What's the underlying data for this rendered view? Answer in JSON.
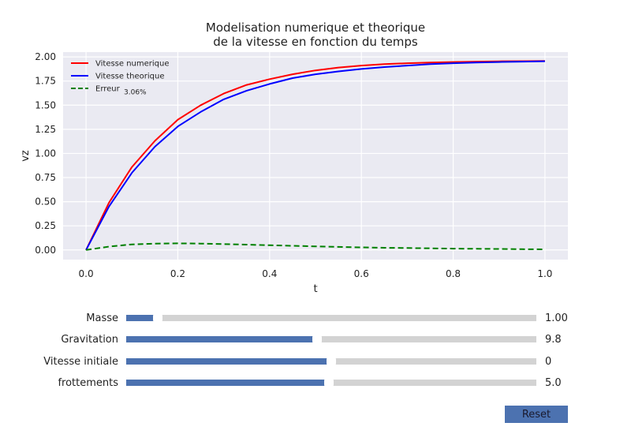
{
  "chart_data": {
    "type": "line",
    "title": "Modelisation numerique et theorique\nde la vitesse en fonction du temps",
    "xlabel": "t",
    "ylabel": "vz",
    "xlim": [
      -0.05,
      1.05
    ],
    "ylim": [
      -0.1,
      2.05
    ],
    "xticks": [
      "0.0",
      "0.2",
      "0.4",
      "0.6",
      "0.8",
      "1.0"
    ],
    "yticks": [
      "0.00",
      "0.25",
      "0.50",
      "0.75",
      "1.00",
      "1.25",
      "1.50",
      "1.75",
      "2.00"
    ],
    "grid": true,
    "legend_position": "top-left",
    "x": [
      0.0,
      0.05,
      0.1,
      0.15,
      0.2,
      0.25,
      0.3,
      0.35,
      0.4,
      0.45,
      0.5,
      0.55,
      0.6,
      0.65,
      0.7,
      0.75,
      0.8,
      0.85,
      0.9,
      0.95,
      1.0
    ],
    "series": [
      {
        "name": "Vitesse numerique",
        "color": "#ff0000",
        "style": "solid",
        "values": [
          0.0,
          0.49,
          0.86,
          1.13,
          1.35,
          1.5,
          1.62,
          1.71,
          1.77,
          1.82,
          1.86,
          1.89,
          1.91,
          1.925,
          1.935,
          1.942,
          1.947,
          1.951,
          1.954,
          1.956,
          1.958
        ]
      },
      {
        "name": "Vitesse theorique",
        "color": "#0000ff",
        "style": "solid",
        "values": [
          0.0,
          0.45,
          0.8,
          1.07,
          1.28,
          1.43,
          1.56,
          1.65,
          1.72,
          1.78,
          1.82,
          1.85,
          1.875,
          1.895,
          1.91,
          1.925,
          1.935,
          1.942,
          1.947,
          1.951,
          1.955
        ]
      },
      {
        "name": "Erreur",
        "annotation": "3.06%",
        "color": "#008000",
        "style": "dashed",
        "values": [
          0.0,
          0.035,
          0.058,
          0.066,
          0.068,
          0.066,
          0.061,
          0.055,
          0.049,
          0.043,
          0.037,
          0.032,
          0.027,
          0.023,
          0.02,
          0.017,
          0.014,
          0.012,
          0.01,
          0.008,
          0.006
        ]
      }
    ]
  },
  "sliders": [
    {
      "label": "Masse",
      "value": "1.00",
      "level": 0.077
    },
    {
      "label": "Gravitation",
      "value": "9.8",
      "level": 0.465
    },
    {
      "label": "Vitesse initiale",
      "value": "0",
      "level": 0.5
    },
    {
      "label": "frottements",
      "value": "5.0",
      "level": 0.495
    }
  ],
  "colors": {
    "accent": "#4c72b0",
    "track": "#d3d3d3",
    "plot_background": "#eaeaf2"
  },
  "reset_label": "Reset"
}
